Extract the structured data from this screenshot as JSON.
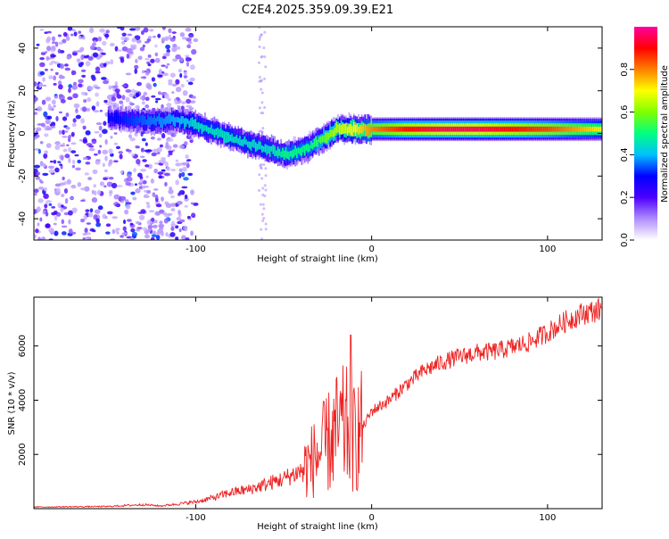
{
  "title": "C2E4.2025.359.09.39.E21",
  "chart_data": [
    {
      "type": "heatmap",
      "name": "spectrogram",
      "xlabel": "Height of straight line (km)",
      "ylabel": "Frequency (Hz)",
      "xlim": [
        -192,
        131
      ],
      "ylim": [
        -50,
        50
      ],
      "x_ticks": [
        -100,
        0,
        100
      ],
      "x_tick_labels": [
        "-100",
        "0",
        "100"
      ],
      "y_ticks": [
        -40,
        -20,
        0,
        20,
        40
      ],
      "y_tick_labels": [
        "-40",
        "-20",
        "0",
        "20",
        "40"
      ],
      "colorbar": {
        "label": "Normalized spectral amplitude",
        "range": [
          0,
          1
        ],
        "ticks": [
          0.0,
          0.2,
          0.4,
          0.6,
          0.8
        ],
        "tick_labels": [
          "0.0",
          "0.2",
          "0.4",
          "0.6",
          "0.8"
        ],
        "colors": [
          "#ffffff",
          "#b08cff",
          "#4b00ff",
          "#0000ff",
          "#00c0ff",
          "#00ff80",
          "#80ff00",
          "#ffff00",
          "#ff8000",
          "#ff0000",
          "#ff00a0"
        ]
      },
      "ridge": {
        "description_points_x": [
          -145,
          -130,
          -110,
          -100,
          -90,
          -80,
          -70,
          -60,
          -50,
          -45,
          -40,
          -35,
          -30,
          -25,
          -20,
          -10,
          0,
          20,
          40,
          60,
          80,
          100,
          131
        ],
        "description_points_y": [
          7,
          6,
          6,
          4,
          1,
          -2,
          -5,
          -7,
          -10,
          -9,
          -8,
          -6,
          -3,
          -1,
          2,
          2,
          2,
          2,
          2,
          2,
          2,
          2,
          2
        ],
        "amplitude": [
          0.3,
          0.35,
          0.4,
          0.45,
          0.45,
          0.45,
          0.45,
          0.45,
          0.5,
          0.5,
          0.5,
          0.5,
          0.55,
          0.6,
          0.65,
          0.7,
          0.8,
          0.9,
          0.95,
          0.95,
          0.9,
          0.85,
          0.7
        ]
      }
    },
    {
      "type": "line",
      "name": "snr",
      "xlabel": "Height of straight line (km)",
      "ylabel": "SNR (10 * v/v)",
      "xlim": [
        -192,
        131
      ],
      "ylim": [
        0,
        7800
      ],
      "x_ticks": [
        -100,
        0,
        100
      ],
      "x_tick_labels": [
        "-100",
        "0",
        "100"
      ],
      "y_ticks": [
        2000,
        4000,
        6000
      ],
      "y_tick_labels": [
        "2000",
        "4000",
        "6000"
      ],
      "color": "#ee2222",
      "x": [
        -192,
        -150,
        -130,
        -120,
        -100,
        -90,
        -80,
        -70,
        -60,
        -50,
        -40,
        -30,
        -25,
        -20,
        -15,
        -10,
        -5,
        0,
        10,
        20,
        30,
        40,
        50,
        60,
        70,
        80,
        90,
        100,
        110,
        120,
        131
      ],
      "y": [
        60,
        80,
        150,
        100,
        250,
        400,
        600,
        700,
        900,
        1100,
        1400,
        2000,
        2400,
        2800,
        3000,
        2600,
        3000,
        3600,
        4000,
        4600,
        5100,
        5400,
        5600,
        5750,
        5800,
        5950,
        6150,
        6500,
        6900,
        7200,
        7350
      ]
    }
  ]
}
